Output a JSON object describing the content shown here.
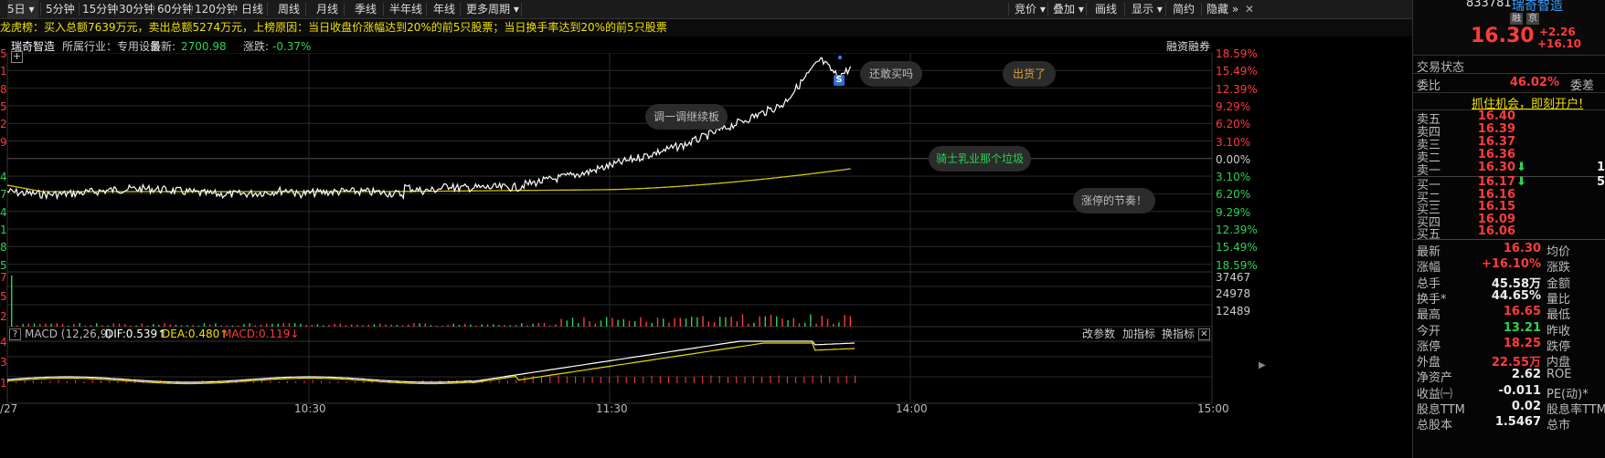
{
  "toolbar": {
    "periods": [
      "5日",
      "5分钟",
      "15分钟",
      "30分钟",
      "60分钟",
      "120分钟",
      "日线",
      "周线",
      "月线",
      "季线",
      "半年线",
      "年线",
      "更多周期"
    ],
    "right": [
      "竞价",
      "叠加",
      "画线",
      "显示",
      "简约",
      "隐藏"
    ],
    "dropdown_glyph": "▾",
    "more_glyph": "»",
    "close_glyph": "✕"
  },
  "banner": "龙虎榜：买入总额7639万元，卖出总额5274万元，上榜原因：当日收盘价涨幅达到20%的前5只股票；当日换手率达到20%的前5只股票",
  "info": {
    "stock_name": "瑞奇智造",
    "industry": "所属行业：专用设备",
    "latest_label": "最新:",
    "latest": "2700.98",
    "change_label": "涨跌:",
    "change": "-0.37%",
    "margin": "融资融券"
  },
  "annotations": {
    "a1": "还敢买吗",
    "a2": "出货了",
    "a3": "调一调继续板",
    "a4": "骑士乳业那个垃圾",
    "a5": "涨停的节奏！",
    "s_marker": "S"
  },
  "price_axis": {
    "right_top": [
      "18.59%",
      "15.49%",
      "12.39%",
      "9.29%",
      "6.20%",
      "3.10%"
    ],
    "zero": "0.00%",
    "right_bottom": [
      "3.10%",
      "6.20%",
      "9.29%",
      "12.39%",
      "15.49%",
      "18.59%"
    ],
    "left_digits": [
      "5",
      "1",
      "8",
      "5",
      "2",
      "9",
      "4",
      "7",
      "4",
      "1",
      "8",
      "5"
    ]
  },
  "volume_axis": {
    "right": [
      "37467",
      "24978",
      "12489"
    ],
    "left": [
      "7",
      "5",
      "2"
    ]
  },
  "macd": {
    "help": "?",
    "title": "MACD (12,26,9)",
    "dif": "DIF:0.539↑",
    "dea": "DEA:0.480↑",
    "macd": "MACD:0.119↓",
    "links": [
      "改参数",
      "加指标",
      "换指标"
    ],
    "left_axis": [
      "4",
      "3",
      "1"
    ]
  },
  "time_axis": [
    "/27",
    "10:30",
    "11:30",
    "14:00",
    "15:00"
  ],
  "panel": {
    "code": "833781",
    "name": "瑞奇智造",
    "tags": [
      "融",
      "京"
    ],
    "price": "16.30",
    "chg": "+2.26",
    "pct": "+16.10",
    "status_label": "交易状态",
    "wb_label": "委比",
    "wb_value": "46.02%",
    "wc_label": "委差",
    "promo": "抓住机会，即刻开户!",
    "asks": [
      {
        "label": "卖五",
        "price": "16.40",
        "mark": "",
        "vol": ""
      },
      {
        "label": "卖四",
        "price": "16.39",
        "mark": "",
        "vol": ""
      },
      {
        "label": "卖三",
        "price": "16.37",
        "mark": "",
        "vol": ""
      },
      {
        "label": "卖二",
        "price": "16.36",
        "mark": "",
        "vol": ""
      },
      {
        "label": "卖一",
        "price": "16.30",
        "mark": "⬇",
        "vol": "1"
      }
    ],
    "bids": [
      {
        "label": "买一",
        "price": "16.17",
        "mark": "⬇",
        "vol": "5"
      },
      {
        "label": "买二",
        "price": "16.16",
        "mark": "",
        "vol": ""
      },
      {
        "label": "买三",
        "price": "16.15",
        "mark": "",
        "vol": ""
      },
      {
        "label": "买四",
        "price": "16.09",
        "mark": "",
        "vol": ""
      },
      {
        "label": "买五",
        "price": "16.06",
        "mark": "",
        "vol": ""
      }
    ],
    "stats": [
      {
        "l": "最新",
        "v": "16.30",
        "c": "red",
        "r": "均价"
      },
      {
        "l": "涨幅",
        "v": "+16.10%",
        "c": "red",
        "r": "涨跌"
      },
      {
        "l": "总手",
        "v": "45.58万",
        "c": "white",
        "r": "金额"
      },
      {
        "l": "换手*",
        "v": "44.65%",
        "c": "white",
        "r": "量比"
      },
      {
        "l": "最高",
        "v": "16.65",
        "c": "red",
        "r": "最低"
      },
      {
        "l": "今开",
        "v": "13.21",
        "c": "green",
        "r": "昨收"
      },
      {
        "l": "涨停",
        "v": "18.25",
        "c": "red",
        "r": "跌停"
      },
      {
        "l": "外盘",
        "v": "22.55万",
        "c": "red",
        "r": "内盘"
      },
      {
        "l": "净资产",
        "v": "2.62",
        "c": "white",
        "r": "ROE"
      },
      {
        "l": "收益㈠",
        "v": "-0.011",
        "c": "white",
        "r": "PE(动)*"
      },
      {
        "l": "股息TTM",
        "v": "0.02",
        "c": "white",
        "r": "股息率TTM"
      },
      {
        "l": "总股本",
        "v": "1.5467",
        "c": "white",
        "r": "总市"
      }
    ]
  },
  "colors": {
    "price_line": "#ffffff",
    "avg_line": "#d4c400",
    "up": "#ff3b3b",
    "down": "#2dd252",
    "grid": "#2a2a2a",
    "dif": "#ffffff",
    "dea": "#e8d800"
  }
}
